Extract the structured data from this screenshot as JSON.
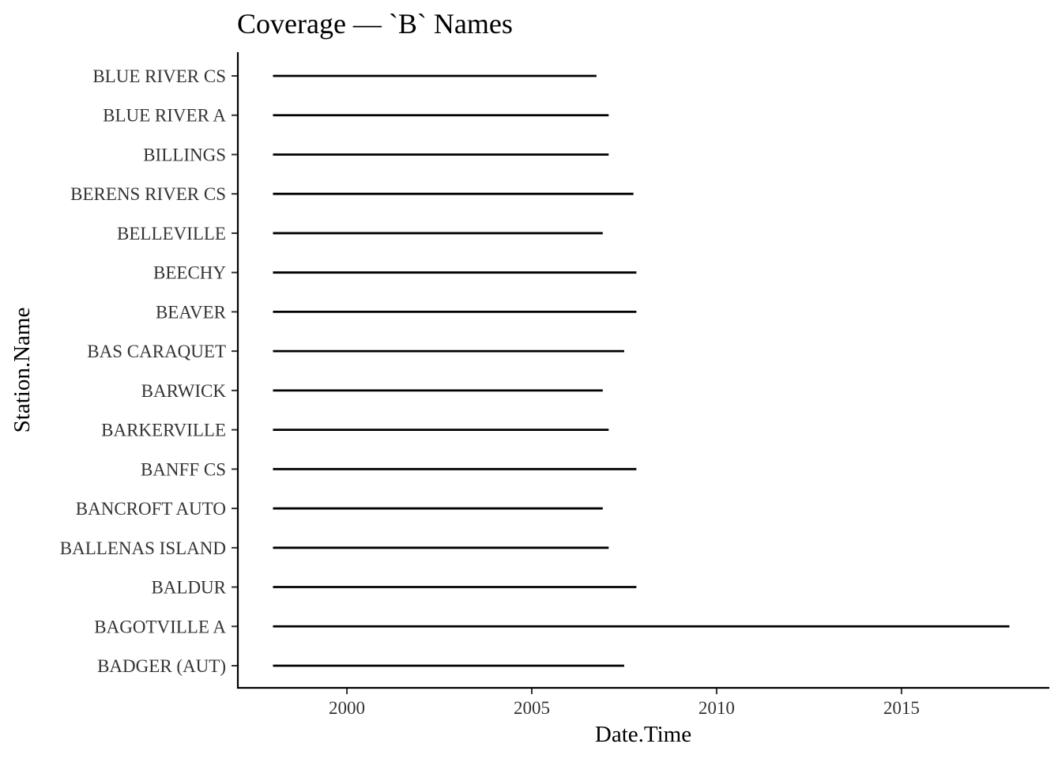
{
  "chart_data": {
    "type": "segment",
    "title": "Coverage — `B` Names",
    "xlabel": "Date.Time",
    "ylabel": "Station.Name",
    "xlim": [
      1997.05,
      2019.0
    ],
    "xticks": [
      2000,
      2005,
      2010,
      2015
    ],
    "grid": false,
    "legend": "none",
    "series": [
      {
        "station": "BADGER (AUT)",
        "start": 1998.0,
        "end": 2007.5
      },
      {
        "station": "BAGOTVILLE A",
        "start": 1998.0,
        "end": 2017.92
      },
      {
        "station": "BALDUR",
        "start": 1998.0,
        "end": 2007.83
      },
      {
        "station": "BALLENAS ISLAND",
        "start": 1998.0,
        "end": 2007.08
      },
      {
        "station": "BANCROFT AUTO",
        "start": 1998.0,
        "end": 2006.92
      },
      {
        "station": "BANFF CS",
        "start": 1998.0,
        "end": 2007.83
      },
      {
        "station": "BARKERVILLE",
        "start": 1998.0,
        "end": 2007.08
      },
      {
        "station": "BARWICK",
        "start": 1998.0,
        "end": 2006.92
      },
      {
        "station": "BAS CARAQUET",
        "start": 1998.0,
        "end": 2007.5
      },
      {
        "station": "BEAVER",
        "start": 1998.0,
        "end": 2007.83
      },
      {
        "station": "BEECHY",
        "start": 1998.0,
        "end": 2007.83
      },
      {
        "station": "BELLEVILLE",
        "start": 1998.0,
        "end": 2006.92
      },
      {
        "station": "BERENS RIVER CS",
        "start": 1998.0,
        "end": 2007.75
      },
      {
        "station": "BILLINGS",
        "start": 1998.0,
        "end": 2007.08
      },
      {
        "station": "BLUE RIVER A",
        "start": 1998.0,
        "end": 2007.08
      },
      {
        "station": "BLUE RIVER CS",
        "start": 1998.0,
        "end": 2006.75
      }
    ],
    "line_color": "#000000",
    "axis_color": "#000000",
    "tick_label_color": "#333333"
  }
}
